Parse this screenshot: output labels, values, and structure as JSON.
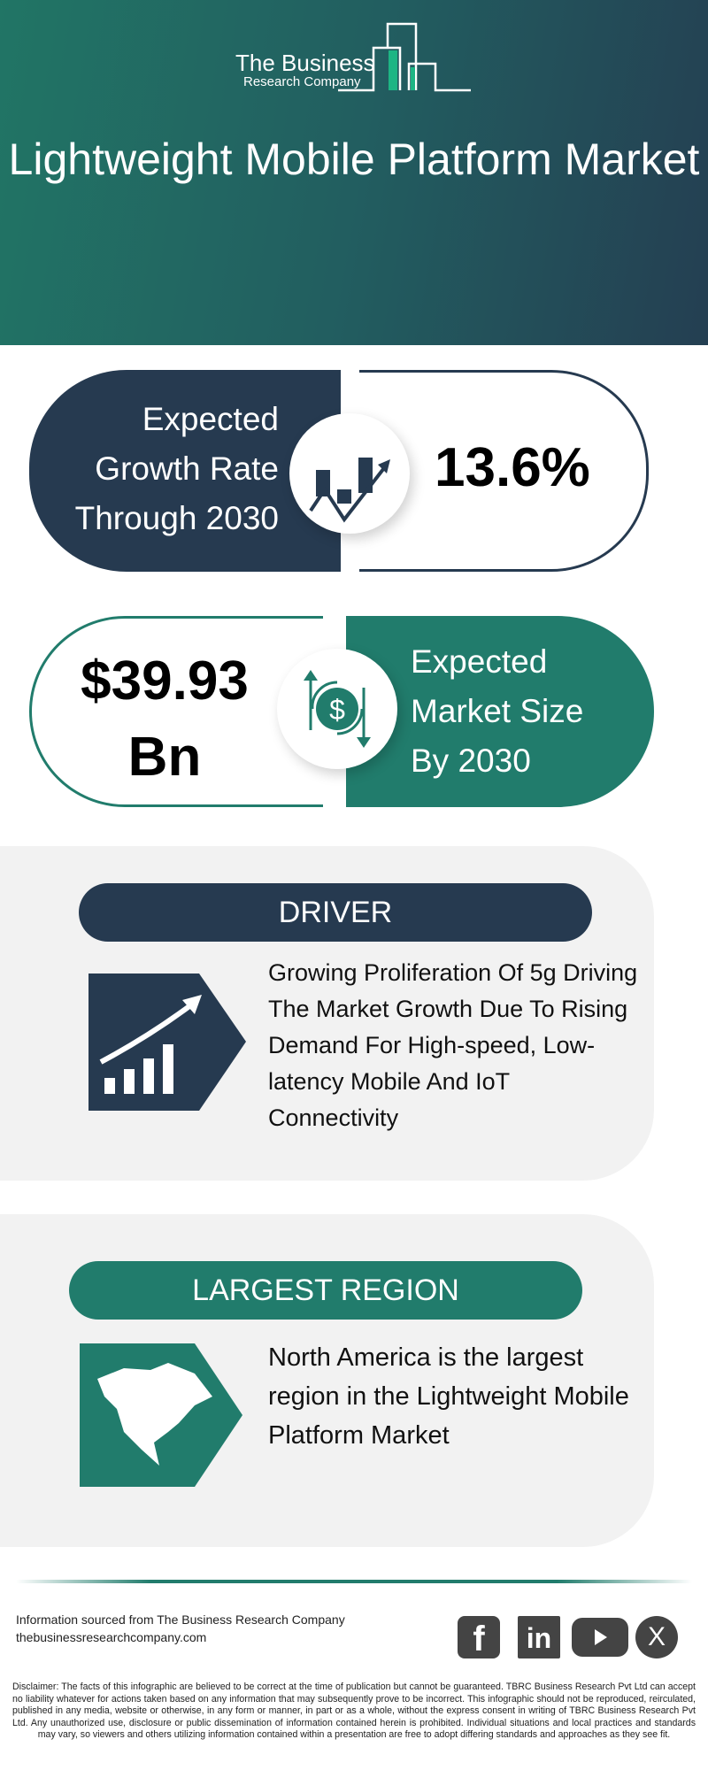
{
  "logo": {
    "line1": "The Business",
    "line2": "Research Company"
  },
  "title": "Lightweight Mobile Platform Market",
  "growth": {
    "label_lines": [
      "Expected",
      "Growth Rate",
      "Through 2030"
    ],
    "value": "13.6%",
    "icon": "growth-chart-icon"
  },
  "size": {
    "value_lines": [
      "$39.93",
      "Bn"
    ],
    "label_lines": [
      "Expected",
      "Market Size",
      "By 2030"
    ],
    "icon": "dollar-cycle-icon"
  },
  "driver": {
    "heading": "DRIVER",
    "text": "Growing Proliferation Of 5g Driving The Market Growth Due To Rising Demand For High-speed, Low-latency Mobile And IoT Connectivity",
    "icon": "rising-bars-icon"
  },
  "region": {
    "heading": "LARGEST REGION",
    "text": "North America is the largest region in the Lightweight Mobile Platform Market",
    "icon": "north-america-map-icon"
  },
  "footer": {
    "source": "Information sourced from The Business Research Company",
    "website": "thebusinessresearchcompany.com",
    "social": [
      "facebook",
      "linkedin",
      "youtube",
      "x"
    ],
    "disclaimer": "Disclaimer: The facts of this infographic are believed to be correct at the time of publication but cannot be guaranteed. TBRC Business Research Pvt Ltd can accept no liability whatever for actions taken based on any information that may subsequently prove to be incorrect. This infographic should not be reproduced, reirculated, published in any media, website or otherwise, in any form or manner, in part or as a whole, without the express consent in writing of TBRC Business Research Pvt Ltd. Any unauthorized use, disclosure or public dissemination of information contained herein is prohibited. Individual situations and local practices and standards may vary, so viewers and others utilizing information contained within a presentation are free to adopt differing standards and approaches as they see fit."
  },
  "colors": {
    "navy": "#263a50",
    "teal": "#217c6c",
    "logo_green": "#1db584",
    "section_bg": "#f2f2f2"
  }
}
